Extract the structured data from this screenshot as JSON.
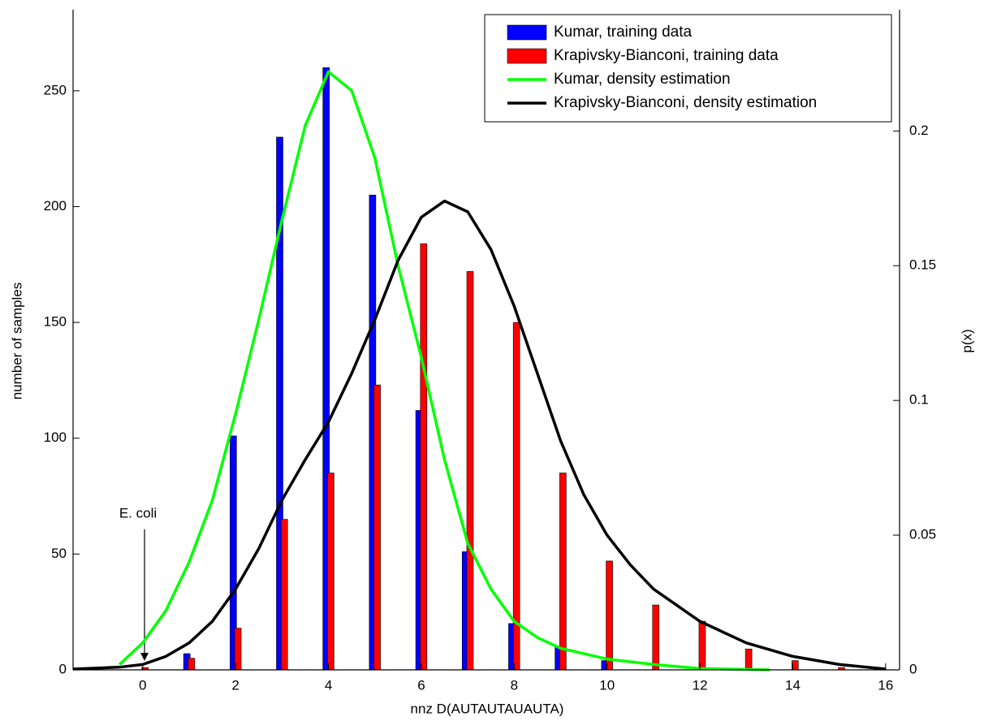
{
  "chart_data": {
    "type": "bar",
    "xlabel": "nnz D(AUTAUTAUAUTA)",
    "ylabel": "number of samples",
    "y2label": "p(x)",
    "annotation": "E. coli",
    "x": [
      0,
      1,
      2,
      3,
      4,
      5,
      6,
      7,
      8,
      9,
      10,
      11,
      12,
      13,
      14,
      15
    ],
    "series": [
      {
        "name": "Kumar, training data",
        "type": "bar",
        "color": "#0000ff",
        "values": [
          0,
          7,
          101,
          230,
          260,
          205,
          112,
          51,
          20,
          10,
          4,
          0,
          0,
          0,
          0,
          0
        ]
      },
      {
        "name": "Krapivsky-Bianconi, training data",
        "type": "bar",
        "color": "#ff0000",
        "values": [
          1,
          5,
          18,
          65,
          85,
          123,
          184,
          172,
          150,
          85,
          47,
          28,
          21,
          9,
          4,
          1
        ]
      },
      {
        "name": "Kumar, density estimation",
        "type": "line",
        "axis": "y2",
        "color": "#00ff00",
        "x": [
          -0.5,
          0,
          0.5,
          1,
          1.5,
          2,
          2.5,
          3,
          3.5,
          4,
          4.5,
          5,
          5.5,
          6,
          6.5,
          7,
          7.5,
          8,
          8.5,
          9,
          10,
          11,
          12,
          13.5
        ],
        "values": [
          0.002,
          0.01,
          0.022,
          0.04,
          0.063,
          0.095,
          0.13,
          0.167,
          0.202,
          0.222,
          0.215,
          0.19,
          0.15,
          0.116,
          0.078,
          0.047,
          0.03,
          0.018,
          0.012,
          0.008,
          0.004,
          0.002,
          0.0005,
          0
        ]
      },
      {
        "name": "Krapivsky-Bianconi, density estimation",
        "type": "line",
        "axis": "y2",
        "color": "#000000",
        "x": [
          -1.5,
          -0.5,
          0,
          0.5,
          1,
          1.5,
          2,
          2.5,
          3,
          3.5,
          4,
          4.5,
          5,
          5.5,
          6,
          6.5,
          7,
          7.5,
          8,
          8.5,
          9,
          9.5,
          10,
          10.5,
          11,
          12,
          13,
          14,
          15,
          16
        ],
        "values": [
          0.0003,
          0.001,
          0.002,
          0.005,
          0.01,
          0.018,
          0.03,
          0.045,
          0.063,
          0.078,
          0.092,
          0.11,
          0.13,
          0.152,
          0.168,
          0.174,
          0.17,
          0.156,
          0.135,
          0.11,
          0.085,
          0.065,
          0.05,
          0.039,
          0.03,
          0.018,
          0.01,
          0.005,
          0.002,
          0.0003
        ]
      }
    ],
    "xlim": [
      -1.5,
      16.3
    ],
    "xticks": [
      0,
      2,
      4,
      6,
      8,
      10,
      12,
      14,
      16
    ],
    "ylim": [
      0,
      285
    ],
    "yticks": [
      0,
      50,
      100,
      150,
      200,
      250
    ],
    "y2lim": [
      0,
      0.245
    ],
    "y2ticks": [
      0,
      0.05,
      0.1,
      0.15,
      0.2
    ],
    "legend": "upper right"
  }
}
